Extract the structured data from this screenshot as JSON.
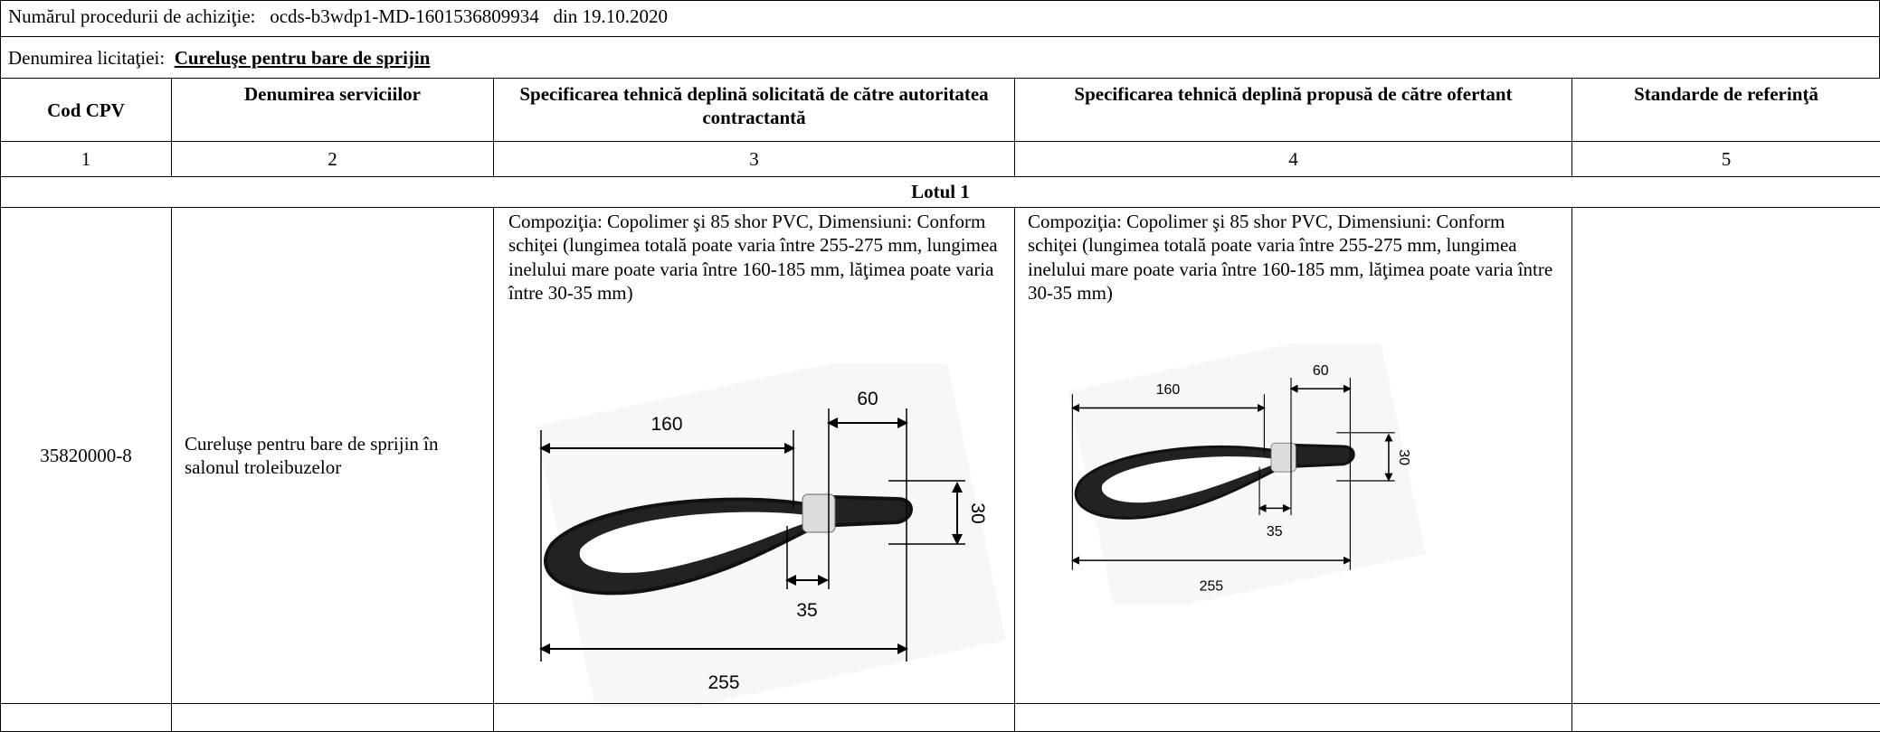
{
  "header": {
    "procedure_label": "Numărul procedurii de achiziţie:",
    "procedure_id": "ocds-b3wdp1-MD-1601536809934",
    "procedure_date": "din 19.10.2020",
    "tender_label": "Denumirea licitaţiei:",
    "tender_name": "Cureluşe pentru bare de sprijin"
  },
  "table": {
    "columns": [
      "Cod CPV",
      "Denumirea serviciilor",
      "Specificarea tehnică deplină solicitată de către autoritatea contractantă",
      "Specificarea tehnică deplină propusă de către ofertant",
      "Standarde de referinţă"
    ],
    "column_numbers": [
      1,
      2,
      3,
      4,
      5
    ],
    "lot": "Lotul 1",
    "rows": [
      {
        "cpv": "35820000-8",
        "name": "Cureluşe pentru bare de sprijin în salonul troleibuzelor",
        "spec_required": "Compoziţia: Copolimer şi 85 shor PVC, Dimensiuni: Conform schiţei (lungimea totală poate varia între 255-275 mm, lungimea inelului mare poate varia între 160-185 mm, lăţimea poate varia între 30-35 mm)",
        "spec_proposed": "Compoziţia: Copolimer şi 85 shor PVC, Dimensiuni: Conform schiţei (lungimea totală poate varia între 255-275 mm, lungimea inelului mare poate varia între 160-185 mm, lăţimea poate varia între 30-35 mm)"
      }
    ]
  },
  "drawings": [
    {
      "labels": [
        160,
        60,
        30,
        35,
        255
      ]
    },
    {
      "labels": [
        160,
        60,
        30,
        35,
        255
      ]
    }
  ]
}
